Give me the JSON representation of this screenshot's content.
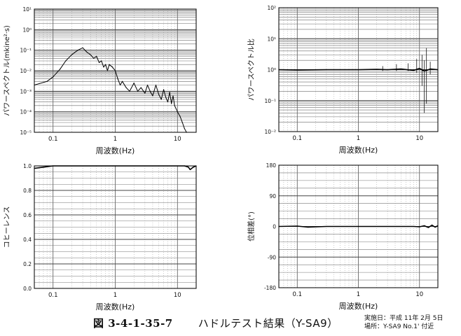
{
  "caption": {
    "number": "図 3-4-1-35-7",
    "title": "ハドルテスト結果（Y-SA9）",
    "meta_line1": "実施日：平成 11年 2月 5日",
    "meta_line2": "場所：Y-SA9 No.1' 付近"
  },
  "chart_data": [
    {
      "type": "line",
      "id": "power-spectrum",
      "ylabel": "パワースペクトル(mkine²·s)",
      "xlabel": "周波数(Hz)",
      "xscale": "log",
      "yscale": "log",
      "xlim": [
        0.05,
        20
      ],
      "ylim": [
        1e-05,
        10
      ],
      "x_tick_labels": [
        {
          "value": 0.1,
          "label": "0.1"
        },
        {
          "value": 1,
          "label": "1"
        },
        {
          "value": 10,
          "label": "10"
        }
      ],
      "y_tick_labels": [
        {
          "value": 10,
          "label": "10¹"
        },
        {
          "value": 1,
          "label": "10⁰"
        },
        {
          "value": 0.1,
          "label": "10⁻¹"
        },
        {
          "value": 0.01,
          "label": "10⁻²"
        },
        {
          "value": 0.001,
          "label": "10⁻³"
        },
        {
          "value": 0.0001,
          "label": "10⁻⁴"
        },
        {
          "value": 1e-05,
          "label": "10⁻⁵"
        }
      ],
      "series": [
        {
          "x": [
            0.05,
            0.08,
            0.1,
            0.13,
            0.16,
            0.2,
            0.25,
            0.3,
            0.35,
            0.4,
            0.45,
            0.5,
            0.55,
            0.6,
            0.65,
            0.7,
            0.75,
            0.8,
            0.9,
            1.0,
            1.1,
            1.2,
            1.3,
            1.5,
            1.7,
            2.0,
            2.3,
            2.6,
            3.0,
            3.3,
            3.7,
            4.0,
            4.5,
            5.0,
            5.5,
            6.0,
            6.5,
            7.0,
            7.5,
            8.0,
            8.5,
            9.0,
            10.0,
            11.0,
            12.0,
            13.0,
            14.0
          ],
          "y": [
            0.002,
            0.003,
            0.005,
            0.012,
            0.03,
            0.06,
            0.1,
            0.13,
            0.08,
            0.06,
            0.04,
            0.05,
            0.025,
            0.03,
            0.015,
            0.02,
            0.01,
            0.02,
            0.015,
            0.01,
            0.004,
            0.002,
            0.003,
            0.0015,
            0.001,
            0.0025,
            0.001,
            0.0015,
            0.0008,
            0.002,
            0.0009,
            0.0006,
            0.002,
            0.0007,
            0.0004,
            0.0012,
            0.0005,
            0.0003,
            0.0009,
            0.00025,
            0.0006,
            0.0002,
            0.0001,
            6e-05,
            3e-05,
            1.5e-05,
            1e-05
          ]
        }
      ]
    },
    {
      "type": "line",
      "id": "power-spectrum-ratio",
      "ylabel": "パワースペクトル比",
      "xlabel": "周波数(Hz)",
      "xscale": "log",
      "yscale": "log",
      "xlim": [
        0.05,
        20
      ],
      "ylim": [
        0.01,
        100
      ],
      "x_tick_labels": [
        {
          "value": 0.1,
          "label": "0.1"
        },
        {
          "value": 1,
          "label": "1"
        },
        {
          "value": 10,
          "label": "10"
        }
      ],
      "y_tick_labels": [
        {
          "value": 100,
          "label": "10²"
        },
        {
          "value": 10,
          "label": "10¹"
        },
        {
          "value": 1,
          "label": "10⁰"
        },
        {
          "value": 0.1,
          "label": "10⁻¹"
        },
        {
          "value": 0.01,
          "label": "10⁻²"
        }
      ],
      "series": [
        {
          "x": [
            0.05,
            0.1,
            0.3,
            1.0,
            2.0,
            3.0,
            5.0,
            8.0,
            10.0,
            12.0,
            15.0,
            20.0
          ],
          "y": [
            1.0,
            0.98,
            1.0,
            1.0,
            1.02,
            1.0,
            1.05,
            0.95,
            1.1,
            0.9,
            1.05,
            1.0
          ]
        }
      ],
      "spikes": [
        {
          "x": 2.5,
          "low": 0.9,
          "high": 1.3
        },
        {
          "x": 4.2,
          "low": 0.9,
          "high": 1.5
        },
        {
          "x": 6.5,
          "low": 0.9,
          "high": 1.6
        },
        {
          "x": 9.0,
          "low": 0.8,
          "high": 2.2
        },
        {
          "x": 11.0,
          "low": 0.3,
          "high": 3.0
        },
        {
          "x": 12.0,
          "low": 0.04,
          "high": 2.0
        },
        {
          "x": 13.0,
          "low": 0.08,
          "high": 5.0
        },
        {
          "x": 15.0,
          "low": 0.7,
          "high": 1.8
        }
      ]
    },
    {
      "type": "line",
      "id": "coherence",
      "ylabel": "コヒーレンス",
      "xlabel": "周波数(Hz)",
      "xscale": "log",
      "yscale": "linear",
      "xlim": [
        0.05,
        20
      ],
      "ylim": [
        0,
        1.0
      ],
      "x_tick_labels": [
        {
          "value": 0.1,
          "label": "0.1"
        },
        {
          "value": 1,
          "label": "1"
        },
        {
          "value": 10,
          "label": "10"
        }
      ],
      "y_tick_labels": [
        {
          "value": 1.0,
          "label": "1.0"
        },
        {
          "value": 0.8,
          "label": "0.8"
        },
        {
          "value": 0.6,
          "label": "0.6"
        },
        {
          "value": 0.4,
          "label": "0.4"
        },
        {
          "value": 0.2,
          "label": "0.2"
        },
        {
          "value": 0.0,
          "label": "0.0"
        }
      ],
      "series": [
        {
          "x": [
            0.05,
            0.07,
            0.1,
            0.5,
            1.0,
            5.0,
            10.0,
            13.0,
            15.0,
            16.0,
            18.0,
            20.0
          ],
          "y": [
            0.98,
            0.99,
            1.0,
            1.0,
            1.0,
            1.0,
            1.0,
            1.0,
            0.99,
            0.97,
            0.99,
            1.0
          ]
        }
      ]
    },
    {
      "type": "line",
      "id": "phase-difference",
      "ylabel": "位相差(°)",
      "xlabel": "周波数(Hz)",
      "xscale": "log",
      "yscale": "linear",
      "xlim": [
        0.05,
        20
      ],
      "ylim": [
        -180,
        180
      ],
      "x_tick_labels": [
        {
          "value": 0.1,
          "label": "0.1"
        },
        {
          "value": 1,
          "label": "1"
        },
        {
          "value": 10,
          "label": "10"
        }
      ],
      "y_tick_labels": [
        {
          "value": 180,
          "label": "180"
        },
        {
          "value": 90,
          "label": "90"
        },
        {
          "value": 0,
          "label": "0"
        },
        {
          "value": -90,
          "label": "-90"
        },
        {
          "value": -180,
          "label": "-180"
        }
      ],
      "series": [
        {
          "x": [
            0.05,
            0.1,
            0.15,
            0.3,
            1.0,
            3.0,
            8.0,
            10.0,
            12.0,
            14.0,
            16.0,
            18.0,
            20.0
          ],
          "y": [
            0,
            1,
            -2,
            0,
            0,
            0,
            0,
            -1,
            2,
            -3,
            4,
            -2,
            2
          ]
        }
      ]
    }
  ]
}
